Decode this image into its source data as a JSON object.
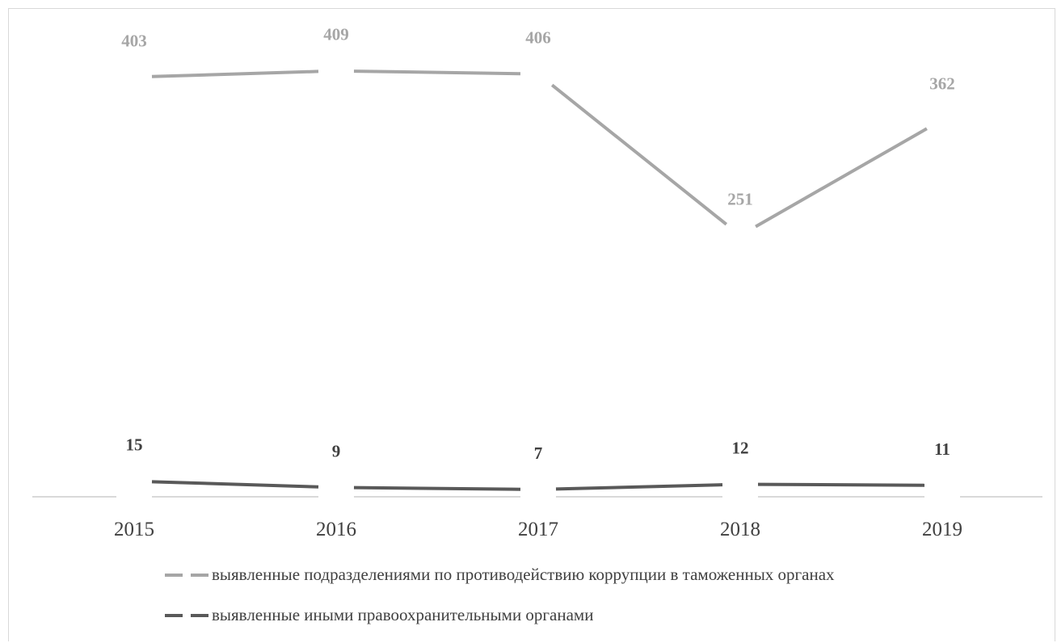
{
  "chart_data": {
    "type": "line",
    "title": "",
    "xlabel": "",
    "ylabel": "",
    "categories": [
      "2015",
      "2016",
      "2017",
      "2018",
      "2019"
    ],
    "series": [
      {
        "name": "выявленные подразделениями по противодействию коррупции в таможенных органах",
        "values": [
          403,
          409,
          406,
          251,
          362
        ],
        "color": "#a6a6a6",
        "dashed": false
      },
      {
        "name": "выявленные иными правоохранительными органами",
        "values": [
          15,
          9,
          7,
          12,
          11
        ],
        "color": "#595959",
        "dashed": false
      }
    ],
    "ylim": [
      0,
      420
    ],
    "grid": false,
    "legend_position": "bottom",
    "data_labels": true
  }
}
